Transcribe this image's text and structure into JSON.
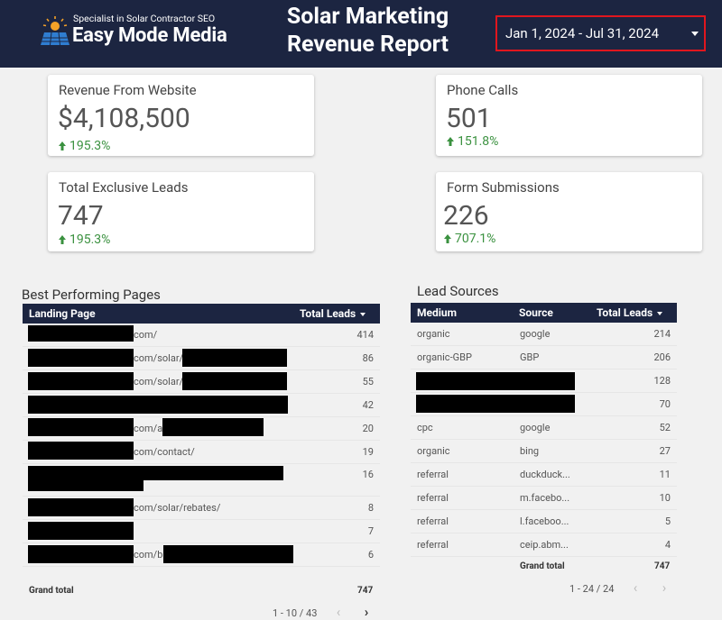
{
  "header": {
    "logo_tagline": "Specialist in Solar Contractor SEO",
    "logo_name": "Easy Mode Media",
    "title": "Solar Marketing Revenue Report",
    "date_range": "Jan 1, 2024 - Jul 31, 2024"
  },
  "scorecards": [
    {
      "label": "Revenue From Website",
      "value": "$4,108,500",
      "change": "195.3%"
    },
    {
      "label": "Phone Calls",
      "value": "501",
      "change": "151.8%"
    },
    {
      "label": "Total Exclusive Leads",
      "value": "747",
      "change": "195.3%"
    },
    {
      "label": "Form Submissions",
      "value": "226",
      "change": "707.1%"
    }
  ],
  "pages_table": {
    "title": "Best Performing Pages",
    "columns": [
      "Landing Page",
      "Total Leads"
    ],
    "rows": [
      {
        "page": "com/",
        "leads": "414"
      },
      {
        "page": "com/solar/",
        "leads": "86"
      },
      {
        "page": "com/solar/",
        "leads": "55"
      },
      {
        "page": "",
        "leads": "42"
      },
      {
        "page": "com/a",
        "leads": "20"
      },
      {
        "page": "com/contact/",
        "leads": "19"
      },
      {
        "page": "",
        "leads": "16"
      },
      {
        "page": "com/solar/rebates/",
        "leads": "8"
      },
      {
        "page": "",
        "leads": "7"
      },
      {
        "page": "com/b",
        "leads": "6"
      }
    ],
    "grand_total_label": "Grand total",
    "grand_total": "747",
    "pagination": "1 - 10 / 43"
  },
  "sources_table": {
    "title": "Lead Sources",
    "columns": [
      "Medium",
      "Source",
      "Total Leads"
    ],
    "rows": [
      {
        "medium": "organic",
        "source": "google",
        "leads": "214"
      },
      {
        "medium": "organic-GBP",
        "source": "GBP",
        "leads": "206"
      },
      {
        "medium": "",
        "source": "",
        "leads": "128"
      },
      {
        "medium": "",
        "source": "",
        "leads": "70"
      },
      {
        "medium": "cpc",
        "source": "google",
        "leads": "52"
      },
      {
        "medium": "organic",
        "source": "bing",
        "leads": "27"
      },
      {
        "medium": "referral",
        "source": "duckduck...",
        "leads": "11"
      },
      {
        "medium": "referral",
        "source": "m.facebo...",
        "leads": "10"
      },
      {
        "medium": "referral",
        "source": "l.faceboo...",
        "leads": "5"
      },
      {
        "medium": "referral",
        "source": "ceip.abm...",
        "leads": "4"
      }
    ],
    "grand_total_label": "Grand total",
    "grand_total": "747",
    "pagination": "1 - 24 / 24"
  },
  "icons": {
    "prev": "chevron-left-icon",
    "next": "chevron-right-icon",
    "trend": "arrow-up-icon"
  },
  "colors": {
    "header_bg": "#1c2541",
    "positive": "#3a913f",
    "highlight_border": "#e0161e"
  }
}
